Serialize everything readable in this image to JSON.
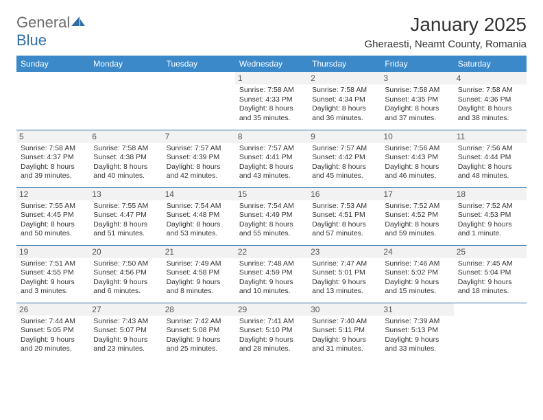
{
  "brand": {
    "general": "General",
    "blue": "Blue"
  },
  "title": "January 2025",
  "location": "Gheraesti, Neamt County, Romania",
  "header_bg": "#3b89c9",
  "day_headers": [
    "Sunday",
    "Monday",
    "Tuesday",
    "Wednesday",
    "Thursday",
    "Friday",
    "Saturday"
  ],
  "weeks": [
    [
      null,
      null,
      null,
      {
        "n": "1",
        "sr": "7:58 AM",
        "ss": "4:33 PM",
        "dl1": "8 hours",
        "dl2": "and 35 minutes."
      },
      {
        "n": "2",
        "sr": "7:58 AM",
        "ss": "4:34 PM",
        "dl1": "8 hours",
        "dl2": "and 36 minutes."
      },
      {
        "n": "3",
        "sr": "7:58 AM",
        "ss": "4:35 PM",
        "dl1": "8 hours",
        "dl2": "and 37 minutes."
      },
      {
        "n": "4",
        "sr": "7:58 AM",
        "ss": "4:36 PM",
        "dl1": "8 hours",
        "dl2": "and 38 minutes."
      }
    ],
    [
      {
        "n": "5",
        "sr": "7:58 AM",
        "ss": "4:37 PM",
        "dl1": "8 hours",
        "dl2": "and 39 minutes."
      },
      {
        "n": "6",
        "sr": "7:58 AM",
        "ss": "4:38 PM",
        "dl1": "8 hours",
        "dl2": "and 40 minutes."
      },
      {
        "n": "7",
        "sr": "7:57 AM",
        "ss": "4:39 PM",
        "dl1": "8 hours",
        "dl2": "and 42 minutes."
      },
      {
        "n": "8",
        "sr": "7:57 AM",
        "ss": "4:41 PM",
        "dl1": "8 hours",
        "dl2": "and 43 minutes."
      },
      {
        "n": "9",
        "sr": "7:57 AM",
        "ss": "4:42 PM",
        "dl1": "8 hours",
        "dl2": "and 45 minutes."
      },
      {
        "n": "10",
        "sr": "7:56 AM",
        "ss": "4:43 PM",
        "dl1": "8 hours",
        "dl2": "and 46 minutes."
      },
      {
        "n": "11",
        "sr": "7:56 AM",
        "ss": "4:44 PM",
        "dl1": "8 hours",
        "dl2": "and 48 minutes."
      }
    ],
    [
      {
        "n": "12",
        "sr": "7:55 AM",
        "ss": "4:45 PM",
        "dl1": "8 hours",
        "dl2": "and 50 minutes."
      },
      {
        "n": "13",
        "sr": "7:55 AM",
        "ss": "4:47 PM",
        "dl1": "8 hours",
        "dl2": "and 51 minutes."
      },
      {
        "n": "14",
        "sr": "7:54 AM",
        "ss": "4:48 PM",
        "dl1": "8 hours",
        "dl2": "and 53 minutes."
      },
      {
        "n": "15",
        "sr": "7:54 AM",
        "ss": "4:49 PM",
        "dl1": "8 hours",
        "dl2": "and 55 minutes."
      },
      {
        "n": "16",
        "sr": "7:53 AM",
        "ss": "4:51 PM",
        "dl1": "8 hours",
        "dl2": "and 57 minutes."
      },
      {
        "n": "17",
        "sr": "7:52 AM",
        "ss": "4:52 PM",
        "dl1": "8 hours",
        "dl2": "and 59 minutes."
      },
      {
        "n": "18",
        "sr": "7:52 AM",
        "ss": "4:53 PM",
        "dl1": "9 hours",
        "dl2": "and 1 minute."
      }
    ],
    [
      {
        "n": "19",
        "sr": "7:51 AM",
        "ss": "4:55 PM",
        "dl1": "9 hours",
        "dl2": "and 3 minutes."
      },
      {
        "n": "20",
        "sr": "7:50 AM",
        "ss": "4:56 PM",
        "dl1": "9 hours",
        "dl2": "and 6 minutes."
      },
      {
        "n": "21",
        "sr": "7:49 AM",
        "ss": "4:58 PM",
        "dl1": "9 hours",
        "dl2": "and 8 minutes."
      },
      {
        "n": "22",
        "sr": "7:48 AM",
        "ss": "4:59 PM",
        "dl1": "9 hours",
        "dl2": "and 10 minutes."
      },
      {
        "n": "23",
        "sr": "7:47 AM",
        "ss": "5:01 PM",
        "dl1": "9 hours",
        "dl2": "and 13 minutes."
      },
      {
        "n": "24",
        "sr": "7:46 AM",
        "ss": "5:02 PM",
        "dl1": "9 hours",
        "dl2": "and 15 minutes."
      },
      {
        "n": "25",
        "sr": "7:45 AM",
        "ss": "5:04 PM",
        "dl1": "9 hours",
        "dl2": "and 18 minutes."
      }
    ],
    [
      {
        "n": "26",
        "sr": "7:44 AM",
        "ss": "5:05 PM",
        "dl1": "9 hours",
        "dl2": "and 20 minutes."
      },
      {
        "n": "27",
        "sr": "7:43 AM",
        "ss": "5:07 PM",
        "dl1": "9 hours",
        "dl2": "and 23 minutes."
      },
      {
        "n": "28",
        "sr": "7:42 AM",
        "ss": "5:08 PM",
        "dl1": "9 hours",
        "dl2": "and 25 minutes."
      },
      {
        "n": "29",
        "sr": "7:41 AM",
        "ss": "5:10 PM",
        "dl1": "9 hours",
        "dl2": "and 28 minutes."
      },
      {
        "n": "30",
        "sr": "7:40 AM",
        "ss": "5:11 PM",
        "dl1": "9 hours",
        "dl2": "and 31 minutes."
      },
      {
        "n": "31",
        "sr": "7:39 AM",
        "ss": "5:13 PM",
        "dl1": "9 hours",
        "dl2": "and 33 minutes."
      },
      null
    ]
  ],
  "labels": {
    "sunrise": "Sunrise:",
    "sunset": "Sunset:",
    "daylight": "Daylight:"
  }
}
